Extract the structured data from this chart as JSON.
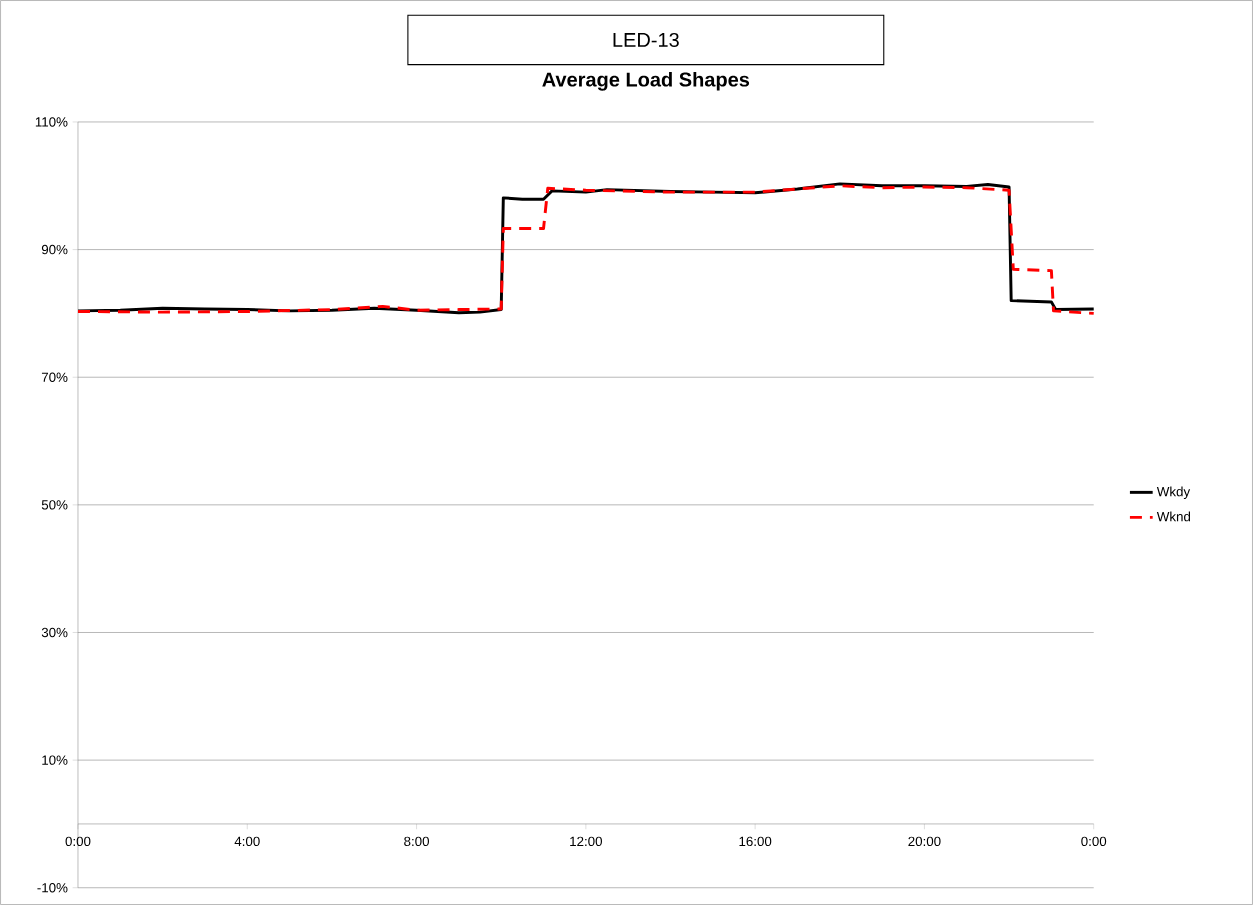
{
  "chart_data": {
    "type": "line",
    "title": "LED-13",
    "subtitle": "Average Load Shapes",
    "xlim": [
      0,
      24
    ],
    "ylim": [
      -10,
      110
    ],
    "xticks": [
      {
        "value": 0,
        "label": "0:00"
      },
      {
        "value": 4,
        "label": "4:00"
      },
      {
        "value": 8,
        "label": "8:00"
      },
      {
        "value": 12,
        "label": "12:00"
      },
      {
        "value": 16,
        "label": "16:00"
      },
      {
        "value": 20,
        "label": "20:00"
      },
      {
        "value": 24,
        "label": "0:00"
      }
    ],
    "yticks": [
      {
        "value": -10,
        "label": "-10%"
      },
      {
        "value": 10,
        "label": "10%"
      },
      {
        "value": 30,
        "label": "30%"
      },
      {
        "value": 50,
        "label": "50%"
      },
      {
        "value": 70,
        "label": "70%"
      },
      {
        "value": 90,
        "label": "90%"
      },
      {
        "value": 110,
        "label": "110%"
      }
    ],
    "grid": "y",
    "legend": "right",
    "series": [
      {
        "name": "Wkdy",
        "color": "#000000",
        "line_style": "solid",
        "x": [
          0,
          1,
          2,
          3,
          4,
          5,
          6,
          7,
          8,
          9,
          9.5,
          10,
          10.05,
          10.5,
          11,
          11.2,
          12,
          12.5,
          14,
          15,
          16,
          17,
          18,
          19,
          20,
          21,
          21.5,
          22,
          22.05,
          23,
          23.1,
          24
        ],
        "values": [
          80.4,
          80.5,
          80.8,
          80.7,
          80.6,
          80.4,
          80.5,
          80.8,
          80.5,
          80.1,
          80.2,
          80.6,
          98.1,
          97.9,
          97.9,
          99.2,
          99.0,
          99.4,
          99.1,
          99.0,
          98.9,
          99.5,
          100.3,
          100.0,
          100.0,
          99.9,
          100.2,
          99.8,
          82.0,
          81.8,
          80.6,
          80.7
        ]
      },
      {
        "name": "Wknd",
        "color": "#ff0000",
        "line_style": "dashed",
        "x": [
          0,
          2,
          4,
          6,
          7.2,
          8,
          9,
          10,
          10.05,
          11,
          11.1,
          12,
          14,
          16,
          17,
          18,
          19,
          20,
          21,
          22,
          22.1,
          23,
          23.05,
          24
        ],
        "values": [
          80.3,
          80.2,
          80.3,
          80.6,
          81.1,
          80.5,
          80.6,
          80.7,
          93.3,
          93.3,
          99.6,
          99.3,
          99.0,
          99.0,
          99.5,
          100.0,
          99.7,
          99.8,
          99.7,
          99.3,
          86.9,
          86.7,
          80.4,
          80.0
        ]
      }
    ]
  }
}
